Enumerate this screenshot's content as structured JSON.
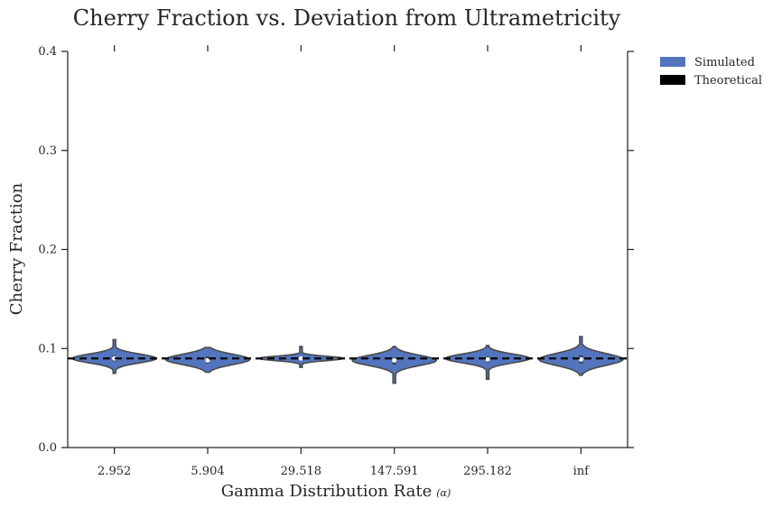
{
  "chart_data": {
    "type": "violin",
    "title": "Cherry Fraction vs. Deviation from Ultrametricity",
    "xlabel": "Gamma Distribution Rate",
    "xlabel_symbol": "(α)",
    "ylabel": "Cherry Fraction",
    "ylim": [
      0.0,
      0.4
    ],
    "yticks": [
      "0.0",
      "0.1",
      "0.2",
      "0.3",
      "0.4"
    ],
    "categories": [
      "2.952",
      "5.904",
      "29.518",
      "147.591",
      "295.182",
      "inf"
    ],
    "grid": false,
    "legend_position": "outside-top-right",
    "series": [
      {
        "name": "Simulated",
        "color": "#5275be",
        "distributions": [
          {
            "min": 0.075,
            "max": 0.109,
            "median": 0.09,
            "q1": 0.087,
            "q3": 0.093,
            "peak": 0.09
          },
          {
            "min": 0.076,
            "max": 0.101,
            "median": 0.088,
            "q1": 0.085,
            "q3": 0.092,
            "peak": 0.089
          },
          {
            "min": 0.081,
            "max": 0.102,
            "median": 0.09,
            "q1": 0.088,
            "q3": 0.091,
            "peak": 0.09
          },
          {
            "min": 0.065,
            "max": 0.102,
            "median": 0.088,
            "q1": 0.084,
            "q3": 0.091,
            "peak": 0.088
          },
          {
            "min": 0.069,
            "max": 0.103,
            "median": 0.089,
            "q1": 0.086,
            "q3": 0.092,
            "peak": 0.09
          },
          {
            "min": 0.073,
            "max": 0.112,
            "median": 0.089,
            "q1": 0.085,
            "q3": 0.093,
            "peak": 0.089
          }
        ]
      },
      {
        "name": "Theoretical",
        "color": "#000000",
        "value": 0.09
      }
    ]
  }
}
